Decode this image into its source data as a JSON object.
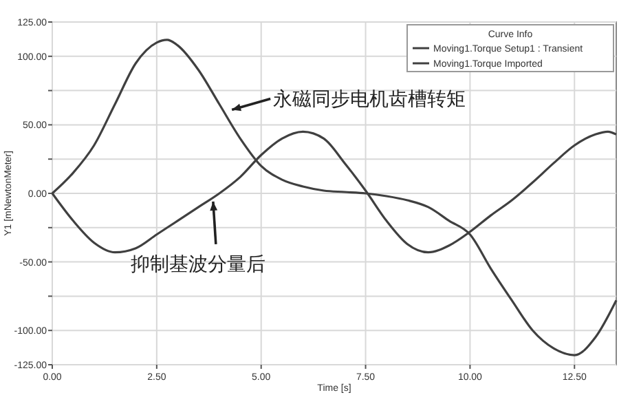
{
  "chart_data": {
    "type": "line",
    "xlabel": "Time [s]",
    "ylabel": "Y1 [mNewtonMeter]",
    "legend_title": "Curve Info",
    "legend": "top right",
    "grid": true,
    "line_style": "solid",
    "xlim": [
      0,
      13.5
    ],
    "xticks": [
      {
        "value": 0,
        "label": "0.00"
      },
      {
        "value": 2.5,
        "label": "2.50"
      },
      {
        "value": 5,
        "label": "5.00"
      },
      {
        "value": 7.5,
        "label": "7.50"
      },
      {
        "value": 10,
        "label": "10.00"
      },
      {
        "value": 12.5,
        "label": "12.50"
      }
    ],
    "ylim": [
      -125,
      125
    ],
    "yticks": [
      {
        "value": -125,
        "label": "-125.00"
      },
      {
        "value": -100,
        "label": "-100.00"
      },
      {
        "value": -75,
        "label": null
      },
      {
        "value": -50,
        "label": "-50.00"
      },
      {
        "value": -25,
        "label": null
      },
      {
        "value": 0,
        "label": "0.00"
      },
      {
        "value": 25,
        "label": null
      },
      {
        "value": 50,
        "label": "50.00"
      },
      {
        "value": 75,
        "label": null
      },
      {
        "value": 100,
        "label": "100.00"
      },
      {
        "value": 125,
        "label": "125.00"
      }
    ],
    "series": [
      {
        "name": "Moving1.Torque Setup1 : Transient",
        "color": "#404040",
        "x": [
          0,
          0.5,
          1,
          1.5,
          2,
          2.5,
          2.75,
          3,
          3.5,
          4,
          4.5,
          5,
          5.5,
          6,
          6.5,
          7,
          7.5,
          8,
          8.5,
          9,
          9.5,
          10,
          10.5,
          11,
          11.5,
          12,
          12.5,
          13,
          13.5
        ],
        "values": [
          0,
          15,
          35,
          65,
          95,
          110,
          112,
          108,
          90,
          65,
          40,
          20,
          10,
          5,
          2,
          1,
          0,
          -2,
          -5,
          -10,
          -20,
          -30,
          -55,
          -78,
          -100,
          -113,
          -118,
          -105,
          -78
        ]
      },
      {
        "name": "Moving1.Torque Imported",
        "color": "#404040",
        "x": [
          0,
          0.5,
          1,
          1.5,
          2,
          2.5,
          3,
          3.5,
          4,
          4.5,
          5,
          5.5,
          6,
          6.5,
          7,
          7.5,
          8,
          8.5,
          9,
          9.5,
          10,
          10.5,
          11,
          11.5,
          12,
          12.5,
          13,
          13.3,
          13.5
        ],
        "values": [
          0,
          -20,
          -36,
          -43,
          -40,
          -30,
          -20,
          -10,
          0,
          12,
          28,
          40,
          45,
          40,
          22,
          2,
          -20,
          -37,
          -43,
          -38,
          -28,
          -16,
          -5,
          8,
          22,
          35,
          43,
          45,
          43
        ]
      }
    ],
    "annotations": [
      {
        "text": "永磁同步电机齿槽转矩",
        "x": 4.3,
        "y": 61
      },
      {
        "text": "抑制基波分量后",
        "x": 3.85,
        "y": -6
      }
    ]
  }
}
